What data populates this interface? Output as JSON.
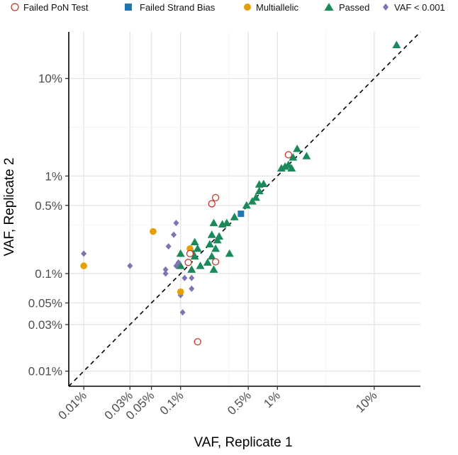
{
  "chart_data": {
    "type": "scatter",
    "title": "",
    "xlabel": "VAF, Replicate 1",
    "ylabel": "VAF, Replicate 2",
    "x_scale": "log10",
    "y_scale": "log10",
    "xlim": [
      7e-05,
      0.3
    ],
    "ylim": [
      7e-05,
      0.3
    ],
    "x_ticks": [
      {
        "value": 0.0001,
        "label": "0.01%"
      },
      {
        "value": 0.0003,
        "label": "0.03%"
      },
      {
        "value": 0.0005,
        "label": "0.05%"
      },
      {
        "value": 0.001,
        "label": "0.1%"
      },
      {
        "value": 0.005,
        "label": "0.5%"
      },
      {
        "value": 0.01,
        "label": "1%"
      },
      {
        "value": 0.1,
        "label": "10%"
      }
    ],
    "y_ticks": [
      {
        "value": 0.0001,
        "label": "0.01%"
      },
      {
        "value": 0.0003,
        "label": "0.03%"
      },
      {
        "value": 0.0005,
        "label": "0.05%"
      },
      {
        "value": 0.001,
        "label": "0.1%"
      },
      {
        "value": 0.005,
        "label": "0.5%"
      },
      {
        "value": 0.01,
        "label": "1%"
      },
      {
        "value": 0.1,
        "label": "10%"
      }
    ],
    "reference_line": "y = x (dashed)",
    "grid": true,
    "legend_position": "top",
    "series": [
      {
        "name": "Failed PoN Test",
        "marker": "open-circle",
        "color": "#c0392b",
        "points": [
          {
            "x": 0.0021,
            "y": 0.0052
          },
          {
            "x": 0.0023,
            "y": 0.006
          },
          {
            "x": 0.013,
            "y": 0.0165
          },
          {
            "x": 0.0012,
            "y": 0.0013
          },
          {
            "x": 0.00125,
            "y": 0.0016
          },
          {
            "x": 0.0023,
            "y": 0.00132
          },
          {
            "x": 0.0015,
            "y": 0.0002
          }
        ]
      },
      {
        "name": "Failed Strand Bias",
        "marker": "square",
        "color": "#1f77b4",
        "points": [
          {
            "x": 0.0042,
            "y": 0.0041
          }
        ]
      },
      {
        "name": "Multiallelic",
        "marker": "circle",
        "color": "#e69f00",
        "points": [
          {
            "x": 0.0001,
            "y": 0.0012
          },
          {
            "x": 0.00052,
            "y": 0.0027
          },
          {
            "x": 0.001,
            "y": 0.00065
          },
          {
            "x": 0.00125,
            "y": 0.0018
          }
        ]
      },
      {
        "name": "Passed",
        "marker": "triangle",
        "color": "#1b8a5a",
        "points": [
          {
            "x": 0.17,
            "y": 0.22
          },
          {
            "x": 0.0145,
            "y": 0.0155
          },
          {
            "x": 0.016,
            "y": 0.019
          },
          {
            "x": 0.02,
            "y": 0.016
          },
          {
            "x": 0.013,
            "y": 0.013
          },
          {
            "x": 0.011,
            "y": 0.012
          },
          {
            "x": 0.012,
            "y": 0.0125
          },
          {
            "x": 0.014,
            "y": 0.012
          },
          {
            "x": 0.0065,
            "y": 0.0082
          },
          {
            "x": 0.0072,
            "y": 0.0083
          },
          {
            "x": 0.0065,
            "y": 0.007
          },
          {
            "x": 0.006,
            "y": 0.006
          },
          {
            "x": 0.0055,
            "y": 0.0055
          },
          {
            "x": 0.0048,
            "y": 0.005
          },
          {
            "x": 0.0036,
            "y": 0.0038
          },
          {
            "x": 0.003,
            "y": 0.0033
          },
          {
            "x": 0.0027,
            "y": 0.0032
          },
          {
            "x": 0.0022,
            "y": 0.0033
          },
          {
            "x": 0.0021,
            "y": 0.0025
          },
          {
            "x": 0.002,
            "y": 0.002
          },
          {
            "x": 0.0024,
            "y": 0.0022
          },
          {
            "x": 0.0023,
            "y": 0.0018
          },
          {
            "x": 0.0025,
            "y": 0.0024
          },
          {
            "x": 0.0021,
            "y": 0.0015
          },
          {
            "x": 0.0022,
            "y": 0.0011
          },
          {
            "x": 0.0019,
            "y": 0.0013
          },
          {
            "x": 0.0016,
            "y": 0.0012
          },
          {
            "x": 0.0013,
            "y": 0.0011
          },
          {
            "x": 0.0014,
            "y": 0.0015
          },
          {
            "x": 0.0015,
            "y": 0.0018
          },
          {
            "x": 0.0014,
            "y": 0.0021
          },
          {
            "x": 0.00135,
            "y": 0.0016
          },
          {
            "x": 0.001,
            "y": 0.0016
          },
          {
            "x": 0.001,
            "y": 0.0012
          },
          {
            "x": 0.0032,
            "y": 0.0016
          }
        ]
      },
      {
        "name": "VAF < 0.001",
        "marker": "diamond",
        "color": "#7b76b0",
        "points": [
          {
            "x": 0.0001,
            "y": 0.0016
          },
          {
            "x": 0.0003,
            "y": 0.0012
          },
          {
            "x": 0.0007,
            "y": 0.0011
          },
          {
            "x": 0.0007,
            "y": 0.001
          },
          {
            "x": 0.00075,
            "y": 0.0019
          },
          {
            "x": 0.00085,
            "y": 0.0025
          },
          {
            "x": 0.0009,
            "y": 0.0033
          },
          {
            "x": 0.0009,
            "y": 0.0012
          },
          {
            "x": 0.00095,
            "y": 0.0013
          },
          {
            "x": 0.0011,
            "y": 0.0009
          },
          {
            "x": 0.0013,
            "y": 0.0009
          },
          {
            "x": 0.0013,
            "y": 0.0007
          },
          {
            "x": 0.001,
            "y": 0.0006
          },
          {
            "x": 0.00105,
            "y": 0.0004
          }
        ]
      }
    ]
  }
}
